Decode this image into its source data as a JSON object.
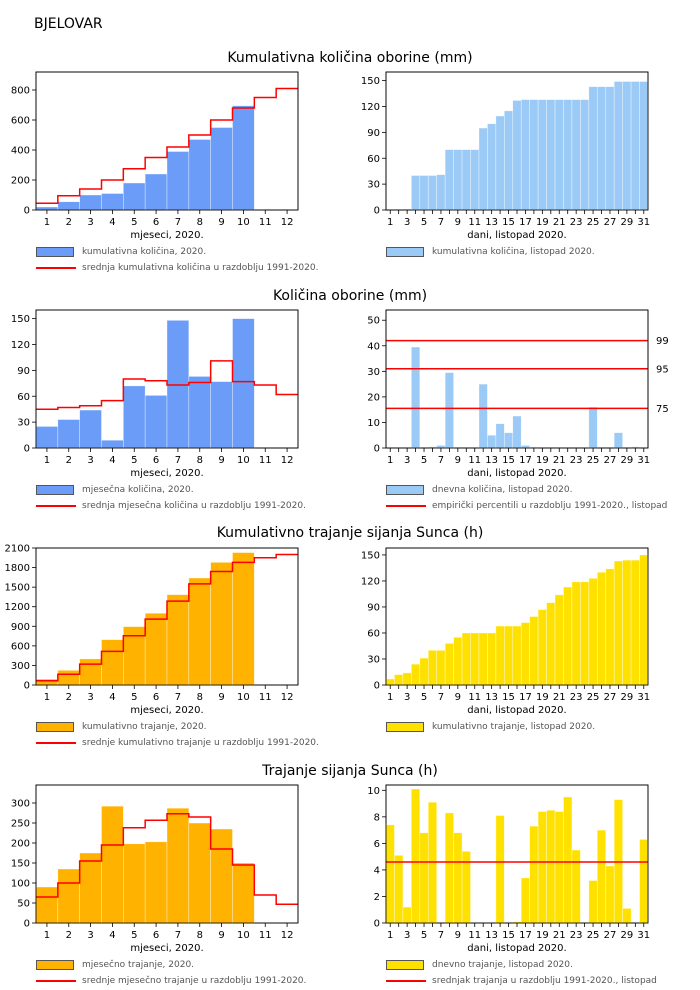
{
  "station": "BJELOVAR",
  "colors": {
    "blue_dark": "#6b9cf7",
    "blue_light": "#9bcaf7",
    "orange": "#ffb200",
    "yellow": "#ffe100",
    "red": "#ff0000"
  },
  "sections": [
    {
      "title": "Kumulativna količina oborine (mm)",
      "left": {
        "type": "bar",
        "x_from": 1,
        "x_to": 12,
        "xlabel": "mjeseci, 2020.",
        "yticks": [
          0,
          200,
          400,
          600,
          800
        ],
        "ylim": [
          0,
          920
        ],
        "bar_color": "blue_dark",
        "values": [
          20,
          55,
          100,
          110,
          180,
          240,
          390,
          470,
          550,
          695
        ],
        "reference_step": [
          45,
          95,
          140,
          200,
          275,
          350,
          420,
          500,
          600,
          680,
          750,
          810
        ],
        "legend": [
          "kumulativna količina, 2020.",
          "srednja kumulativna količina u razdoblju 1991-2020."
        ]
      },
      "right": {
        "type": "bar",
        "x_from": 1,
        "x_to": 31,
        "xlabel": "dani, listopad 2020.",
        "yticks": [
          0,
          30,
          60,
          90,
          120,
          150
        ],
        "ylim": [
          0,
          160
        ],
        "bar_color": "blue_light",
        "values": [
          0,
          0,
          0,
          40,
          40,
          40,
          41,
          70,
          70,
          70,
          70,
          95,
          100,
          109,
          115,
          127,
          128,
          128,
          128,
          128,
          128,
          128,
          128,
          128,
          143,
          143,
          143,
          149,
          149,
          149,
          149
        ],
        "legend": [
          "kumulativna količina, listopad 2020."
        ]
      }
    },
    {
      "title": "Količina oborine (mm)",
      "left": {
        "type": "bar",
        "x_from": 1,
        "x_to": 12,
        "xlabel": "mjeseci, 2020.",
        "yticks": [
          0,
          30,
          60,
          90,
          120,
          150
        ],
        "ylim": [
          0,
          160
        ],
        "bar_color": "blue_dark",
        "values": [
          25,
          33,
          44,
          9,
          72,
          61,
          148,
          83,
          77,
          150
        ],
        "reference_step": [
          45,
          47,
          49,
          55,
          80,
          78,
          73,
          76,
          101,
          77,
          73,
          62
        ],
        "legend": [
          "mjesečna količina, 2020.",
          "srednja mjesečna količina u razdoblju 1991-2020."
        ]
      },
      "right": {
        "type": "bar",
        "x_from": 1,
        "x_to": 31,
        "xlabel": "dani, listopad 2020.",
        "yticks": [
          0,
          10,
          20,
          30,
          40,
          50
        ],
        "ylim": [
          0,
          54
        ],
        "bar_color": "blue_light",
        "values": [
          0,
          0,
          0,
          39.5,
          0,
          0.5,
          1,
          29.5,
          0,
          0,
          0,
          25,
          5,
          9.5,
          6,
          12.5,
          1,
          0.4,
          0,
          0,
          0,
          0,
          0,
          0,
          16,
          0,
          0,
          6,
          0,
          0.5,
          0
        ],
        "percentile_lines": [
          {
            "label": "99",
            "value": 42
          },
          {
            "label": "95",
            "value": 31
          },
          {
            "label": "75",
            "value": 15.5
          }
        ],
        "legend": [
          "dnevna količina, listopad 2020.",
          "empirički percentili u razdoblju 1991-2020., listopad"
        ]
      }
    },
    {
      "title": "Kumulativno trajanje sijanja Sunca (h)",
      "left": {
        "type": "bar",
        "x_from": 1,
        "x_to": 12,
        "xlabel": "mjeseci, 2020.",
        "yticks": [
          0,
          300,
          600,
          900,
          1200,
          1500,
          1800,
          2100
        ],
        "ylim": [
          0,
          2100
        ],
        "bar_color": "orange",
        "values": [
          90,
          225,
          400,
          695,
          895,
          1100,
          1385,
          1640,
          1880,
          2030
        ],
        "reference_step": [
          65,
          165,
          320,
          515,
          755,
          1010,
          1285,
          1550,
          1740,
          1880,
          1950,
          2000
        ],
        "legend": [
          "kumulativno trajanje, 2020.",
          "srednje kumulativno trajanje u razdoblju 1991-2020."
        ]
      },
      "right": {
        "type": "bar",
        "x_from": 1,
        "x_to": 31,
        "xlabel": "dani, listopad 2020.",
        "yticks": [
          0,
          30,
          60,
          90,
          120,
          150
        ],
        "ylim": [
          0,
          158
        ],
        "bar_color": "yellow",
        "values": [
          7,
          12,
          14,
          24,
          31,
          40,
          40,
          48,
          55,
          60,
          60,
          60,
          60,
          68,
          68,
          68,
          72,
          79,
          87,
          95,
          104,
          113,
          119,
          119,
          123,
          130,
          134,
          143,
          144,
          144,
          150
        ],
        "legend": [
          "kumulativno trajanje, listopad 2020."
        ]
      }
    },
    {
      "title": "Trajanje sijanja Sunca (h)",
      "left": {
        "type": "bar",
        "x_from": 1,
        "x_to": 12,
        "xlabel": "mjeseci, 2020.",
        "yticks": [
          0,
          50,
          100,
          150,
          200,
          250,
          300
        ],
        "ylim": [
          0,
          345
        ],
        "bar_color": "orange",
        "values": [
          90,
          135,
          175,
          292,
          198,
          203,
          287,
          250,
          235,
          150
        ],
        "reference_step": [
          65,
          100,
          155,
          195,
          238,
          257,
          273,
          265,
          185,
          145,
          70,
          47
        ],
        "legend": [
          "mjesečno trajanje, 2020.",
          "srednje mjesečno trajanje u razdoblju 1991-2020."
        ]
      },
      "right": {
        "type": "bar",
        "x_from": 1,
        "x_to": 31,
        "xlabel": "dani, listopad 2020.",
        "yticks": [
          0,
          2,
          4,
          6,
          8,
          10
        ],
        "ylim": [
          0,
          10.4
        ],
        "bar_color": "yellow",
        "values": [
          7.4,
          5.1,
          1.2,
          10.1,
          6.8,
          9.1,
          0,
          8.3,
          6.8,
          5.4,
          0,
          0,
          0,
          8.1,
          0,
          0.1,
          3.4,
          7.3,
          8.4,
          8.5,
          8.4,
          9.5,
          5.5,
          0,
          3.2,
          7.0,
          4.3,
          9.3,
          1.1,
          0,
          6.3
        ],
        "reference_line": 4.6,
        "legend": [
          "dnevno trajanje, listopad 2020.",
          "srednjak trajanja u razdoblju 1991-2020., listopad"
        ]
      }
    }
  ]
}
